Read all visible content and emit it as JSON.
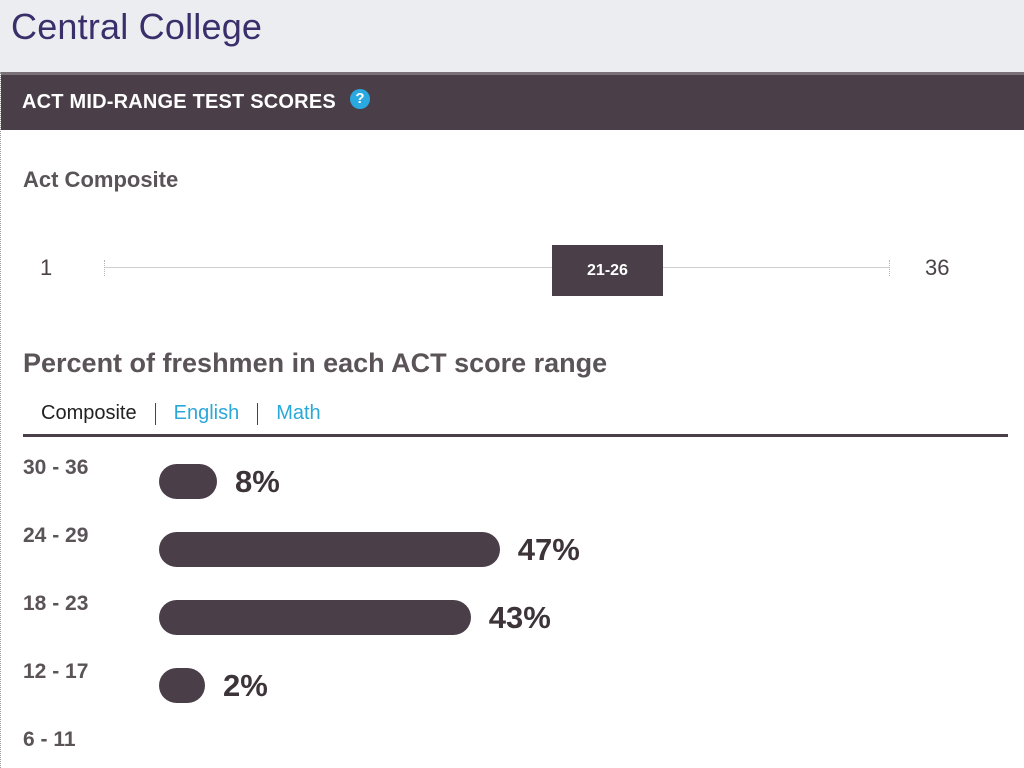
{
  "slide": {
    "title": "Central College"
  },
  "panel": {
    "header": "ACT MID-RANGE TEST SCORES",
    "help_icon": "?",
    "composite_label": "Act Composite",
    "range": {
      "min": "1",
      "max": "36",
      "mid_range": "21-26",
      "mid_low": 21,
      "mid_high": 26
    },
    "distribution_title": "Percent of freshmen in each ACT score range",
    "tabs": [
      {
        "label": "Composite",
        "active": true
      },
      {
        "label": "English",
        "active": false
      },
      {
        "label": "Math",
        "active": false
      }
    ],
    "rows": [
      {
        "range": "30 - 36",
        "percent": 8,
        "label": "8%"
      },
      {
        "range": "24 - 29",
        "percent": 47,
        "label": "47%"
      },
      {
        "range": "18 - 23",
        "percent": 43,
        "label": "43%"
      },
      {
        "range": "12 - 17",
        "percent": 2,
        "label": "2%"
      },
      {
        "range": "6 - 11",
        "percent": 0,
        "label": ""
      }
    ]
  },
  "colors": {
    "title": "#3a2f6b",
    "bar": "#4a3f48",
    "link": "#2aa8d8",
    "help_icon": "#2aa8e0"
  }
}
